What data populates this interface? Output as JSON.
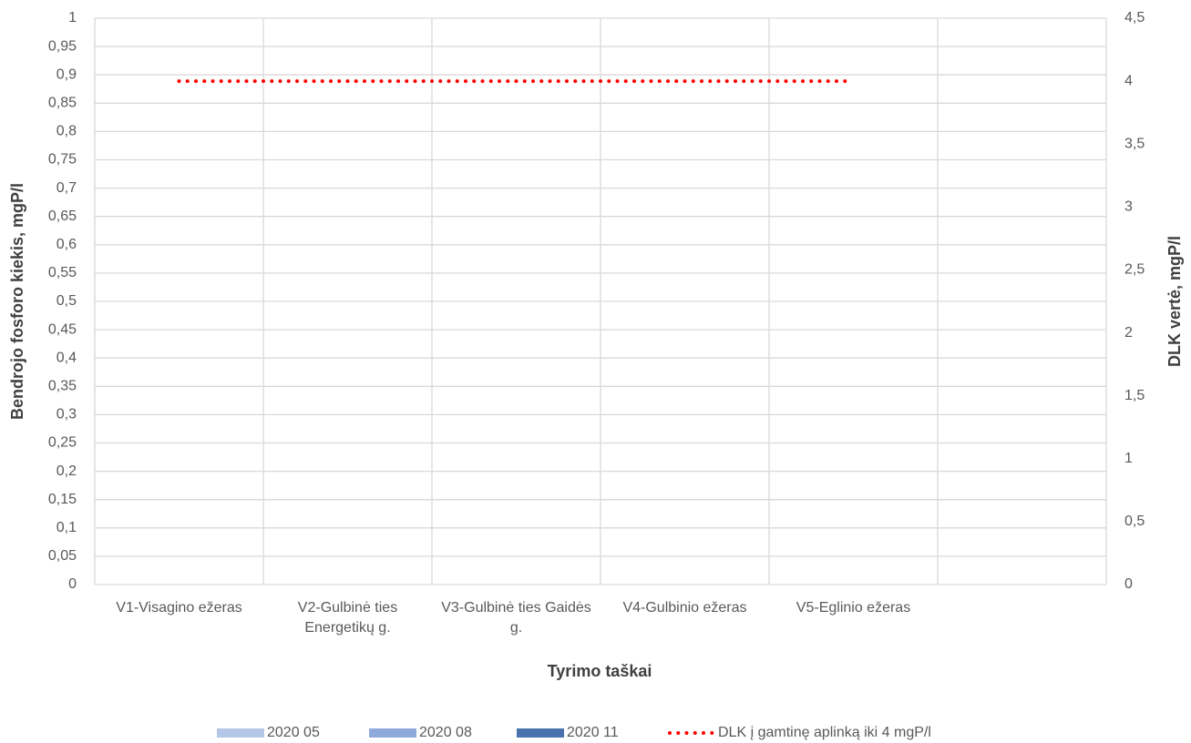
{
  "chart_data": {
    "type": "bar",
    "x_label": "Tyrimo taškai",
    "y_label": "Bendrojo fosforo kiekis, mgP/l",
    "y2_label": "DLK vertė, mgP/l",
    "categories": [
      "V1-Visagino ežeras",
      "V2-Gulbinė ties Energetikų g.",
      "V3-Gulbinė ties Gaidės g.",
      "V4-Gulbinio ežeras",
      "V5-Eglinio ežeras",
      null
    ],
    "series": [
      {
        "name": "2020 05",
        "type": "bar",
        "color": "#b4c7e7",
        "values": [
          null,
          null,
          null,
          null,
          null,
          null
        ]
      },
      {
        "name": "2020 08",
        "type": "bar",
        "color": "#8eaadb",
        "values": [
          null,
          null,
          null,
          null,
          null,
          null
        ]
      },
      {
        "name": "2020 11",
        "type": "bar",
        "color": "#4a73ad",
        "values": [
          null,
          null,
          null,
          null,
          null,
          null
        ]
      },
      {
        "name": "DLK į gamtinę aplinką iki 4 mgP/l",
        "type": "line",
        "axis": "y2",
        "color": "#ff0000",
        "values": [
          4,
          4,
          4,
          4,
          4,
          null
        ]
      }
    ],
    "ylim": [
      0,
      1
    ],
    "yticks": [
      0,
      {
        "value": 0.05,
        "label": "0,05"
      },
      {
        "value": 0.1,
        "label": "0,1"
      },
      {
        "value": 0.15,
        "label": "0,15"
      },
      {
        "value": 0.2,
        "label": "0,2"
      },
      {
        "value": 0.25,
        "label": "0,25"
      },
      {
        "value": 0.3,
        "label": "0,3"
      },
      {
        "value": 0.35,
        "label": "0,35"
      },
      {
        "value": 0.4,
        "label": "0,4"
      },
      {
        "value": 0.45,
        "label": "0,45"
      },
      {
        "value": 0.5,
        "label": "0,5"
      },
      {
        "value": 0.55,
        "label": "0,55"
      },
      {
        "value": 0.6,
        "label": "0,6"
      },
      {
        "value": 0.65,
        "label": "0,65"
      },
      {
        "value": 0.7,
        "label": "0,7"
      },
      {
        "value": 0.75,
        "label": "0,75"
      },
      {
        "value": 0.8,
        "label": "0,8"
      },
      {
        "value": 0.85,
        "label": "0,85"
      },
      {
        "value": 0.9,
        "label": "0,9"
      },
      {
        "value": 0.95,
        "label": "0,95"
      },
      1
    ],
    "y2lim": [
      0,
      4.5
    ],
    "y2ticks": [
      0,
      {
        "value": 0.5,
        "label": "0,5"
      },
      1,
      {
        "value": 1.5,
        "label": "1,5"
      },
      2,
      {
        "value": 2.5,
        "label": "2,5"
      },
      3,
      {
        "value": 3.5,
        "label": "3,5"
      },
      4,
      {
        "value": 4.5,
        "label": "4,5"
      }
    ],
    "grid": true,
    "legend": "bottom"
  }
}
